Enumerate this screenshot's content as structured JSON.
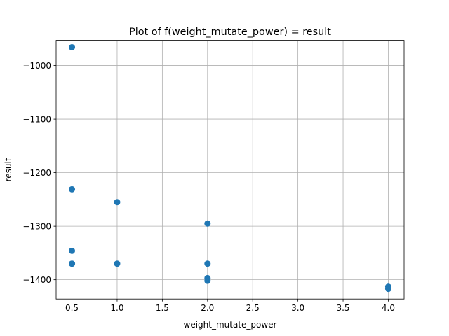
{
  "chart_data": {
    "type": "scatter",
    "title": "Plot of f(weight_mutate_power) = result",
    "xlabel": "weight_mutate_power",
    "ylabel": "result",
    "xlim": [
      0.325,
      4.175
    ],
    "ylim": [
      -1436,
      -953
    ],
    "xticks": [
      0.5,
      1.0,
      1.5,
      2.0,
      2.5,
      3.0,
      3.5,
      4.0
    ],
    "xtick_labels": [
      "0.5",
      "1.0",
      "1.5",
      "2.0",
      "2.5",
      "3.0",
      "3.5",
      "4.0"
    ],
    "yticks": [
      -1000,
      -1100,
      -1200,
      -1300,
      -1400
    ],
    "ytick_labels": [
      "−1000",
      "−1100",
      "−1200",
      "−1300",
      "−1400"
    ],
    "grid": true,
    "marker_color": "#1f77b4",
    "points": [
      {
        "x": 0.5,
        "y": -966
      },
      {
        "x": 0.5,
        "y": -1231
      },
      {
        "x": 0.5,
        "y": -1346
      },
      {
        "x": 0.5,
        "y": -1370
      },
      {
        "x": 0.5,
        "y": -1370
      },
      {
        "x": 1.0,
        "y": -1255
      },
      {
        "x": 1.0,
        "y": -1370
      },
      {
        "x": 2.0,
        "y": -1295
      },
      {
        "x": 2.0,
        "y": -1370
      },
      {
        "x": 2.0,
        "y": -1397
      },
      {
        "x": 2.0,
        "y": -1402
      },
      {
        "x": 4.0,
        "y": -1413
      },
      {
        "x": 4.0,
        "y": -1417
      }
    ]
  }
}
